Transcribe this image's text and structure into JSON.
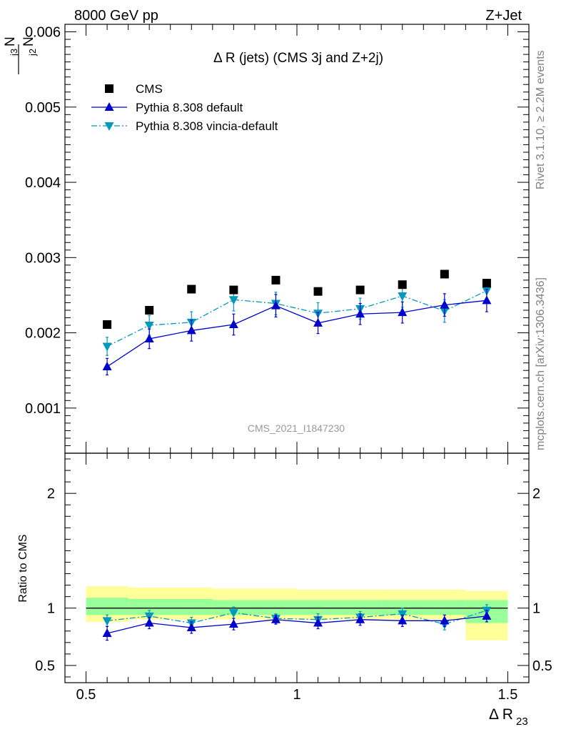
{
  "header": {
    "left": "8000 GeV pp",
    "right": "Z+Jet"
  },
  "side_labels": {
    "rivet": "Rivet 3.1.10, ≥ 2.2M events",
    "mcplots": "mcplots.cern.ch [arXiv:1306.3436]"
  },
  "chart_data": [
    {
      "type": "scatter",
      "title": "Δ R (jets) (CMS 3j and Z+2j)",
      "watermark": "CMS_2021_I1847230",
      "ylabel_num": "N",
      "ylabel_num_sub": "j3",
      "ylabel_den": "N",
      "ylabel_den_sub": "j2",
      "ylim": [
        0.0004,
        0.0061
      ],
      "y_ticks": [
        0.001,
        0.002,
        0.003,
        0.004,
        0.005,
        0.006
      ],
      "y_tick_labels": [
        "0.001",
        "0.002",
        "0.003",
        "0.004",
        "0.005",
        "0.006"
      ],
      "x": [
        0.55,
        0.65,
        0.75,
        0.85,
        0.95,
        1.05,
        1.15,
        1.25,
        1.35,
        1.45
      ],
      "legend_position": "top-left",
      "series": [
        {
          "name": "CMS",
          "color": "#000000",
          "marker": "square",
          "values": [
            0.00211,
            0.0023,
            0.00258,
            0.00257,
            0.0027,
            0.00255,
            0.00257,
            0.00264,
            0.00278,
            0.00266
          ]
        },
        {
          "name": "Pythia 8.308 default",
          "color": "#0000cc",
          "marker": "triangle-up",
          "line": "solid",
          "values": [
            0.00155,
            0.00192,
            0.00203,
            0.00211,
            0.00236,
            0.00213,
            0.00225,
            0.00227,
            0.00237,
            0.00243
          ],
          "errors": [
            0.00011,
            0.00013,
            0.00014,
            0.00014,
            0.00015,
            0.00014,
            0.00014,
            0.00014,
            0.00015,
            0.00015
          ]
        },
        {
          "name": "Pythia 8.308 vincia-default",
          "color": "#0099bb",
          "marker": "triangle-down",
          "line": "dash-dot",
          "values": [
            0.00182,
            0.0021,
            0.00214,
            0.00244,
            0.00239,
            0.00226,
            0.00232,
            0.00249,
            0.00229,
            0.00256
          ],
          "errors": [
            0.00012,
            0.00013,
            0.00014,
            0.00015,
            0.00015,
            0.00014,
            0.00014,
            0.00015,
            0.00015,
            0.00015
          ]
        }
      ]
    },
    {
      "type": "scatter",
      "ylabel": "Ratio to CMS",
      "xlabel": "Δ R",
      "xlabel_sub": "23",
      "xlim": [
        0.45,
        1.55
      ],
      "ylim": [
        0.35,
        2.35
      ],
      "x_ticks": [
        0.5,
        1,
        1.5
      ],
      "x_tick_labels": [
        "0.5",
        "1",
        "1.5"
      ],
      "y_ticks": [
        0.5,
        1,
        2
      ],
      "y_tick_labels": [
        "0.5",
        "1",
        "2"
      ],
      "x": [
        0.55,
        0.65,
        0.75,
        0.85,
        0.95,
        1.05,
        1.15,
        1.25,
        1.35,
        1.45
      ],
      "bands": {
        "edges": [
          0.5,
          0.6,
          0.8,
          1.0,
          1.2,
          1.4,
          1.5
        ],
        "yellow": [
          [
            0.88,
            1.19
          ],
          [
            0.9,
            1.18
          ],
          [
            0.9,
            1.17
          ],
          [
            0.9,
            1.16
          ],
          [
            0.9,
            1.16
          ],
          [
            0.72,
            1.15
          ]
        ],
        "green": [
          [
            0.94,
            1.09
          ],
          [
            0.94,
            1.08
          ],
          [
            0.94,
            1.07
          ],
          [
            0.94,
            1.07
          ],
          [
            0.94,
            1.07
          ],
          [
            0.87,
            1.07
          ]
        ],
        "yellow_color": "#ffff99",
        "green_color": "#99ff99"
      },
      "series": [
        {
          "name": "Pythia 8.308 default",
          "color": "#0000cc",
          "marker": "triangle-up",
          "line": "solid",
          "values": [
            0.78,
            0.87,
            0.83,
            0.86,
            0.9,
            0.87,
            0.9,
            0.89,
            0.89,
            0.93
          ],
          "errors": [
            0.06,
            0.05,
            0.05,
            0.05,
            0.04,
            0.05,
            0.05,
            0.05,
            0.05,
            0.05
          ]
        },
        {
          "name": "Pythia 8.308 vincia-default",
          "color": "#0099bb",
          "marker": "triangle-down",
          "line": "dash-dot",
          "values": [
            0.89,
            0.93,
            0.87,
            0.96,
            0.91,
            0.9,
            0.92,
            0.95,
            0.86,
            0.98
          ],
          "errors": [
            0.05,
            0.05,
            0.05,
            0.05,
            0.04,
            0.05,
            0.05,
            0.05,
            0.05,
            0.05
          ]
        }
      ]
    }
  ]
}
